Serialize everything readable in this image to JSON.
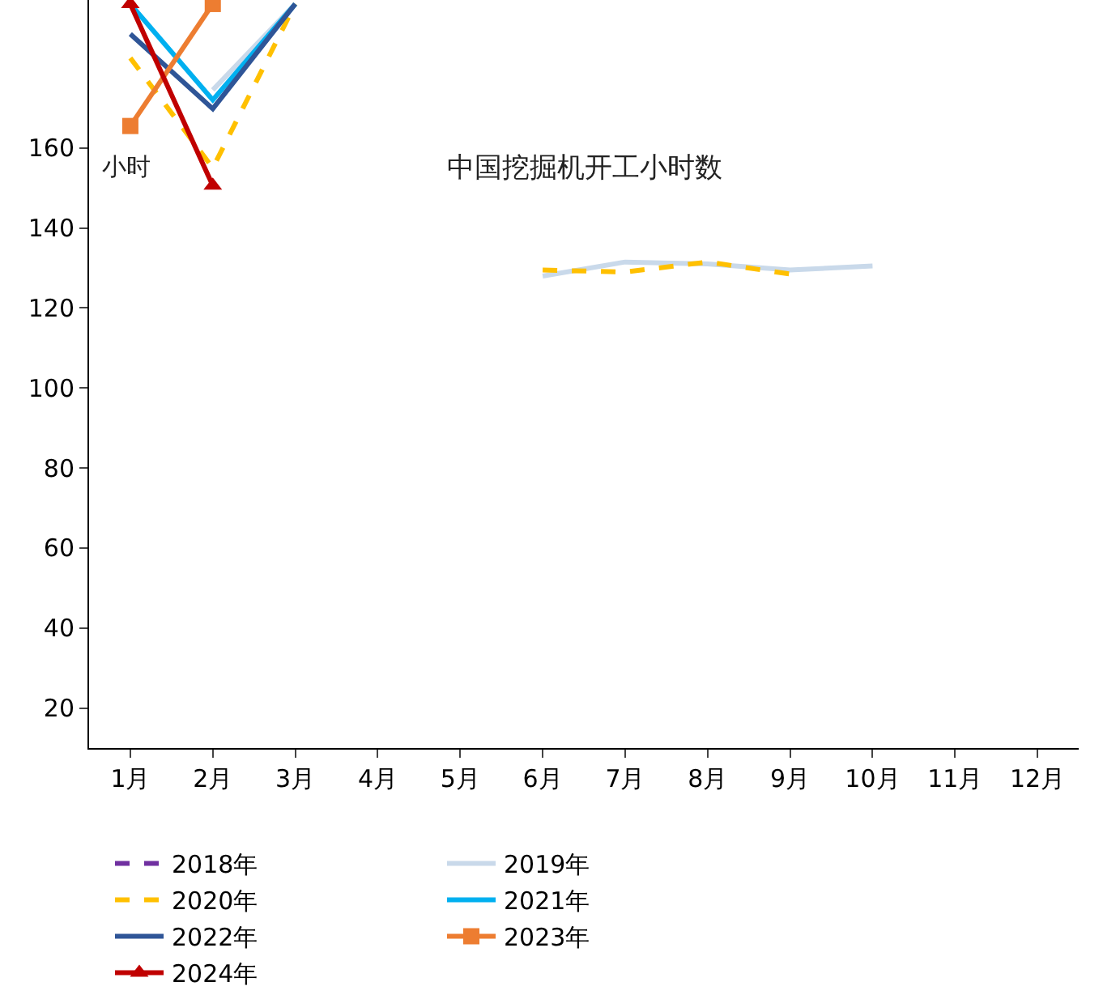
{
  "chart_data": {
    "type": "line",
    "title": "中国挖掘机开工小时数",
    "ylabel": "小时",
    "categories": [
      "1月",
      "2月",
      "3月",
      "4月",
      "5月",
      "6月",
      "7月",
      "8月",
      "9月",
      "10月",
      "11月",
      "12月"
    ],
    "ylim": [
      10,
      197
    ],
    "yticks": [
      20,
      40,
      60,
      80,
      100,
      120,
      140,
      160
    ],
    "grid": false,
    "legend": "bottom",
    "series": [
      {
        "name": "2018年",
        "color": "#7030a0",
        "line_style": "dashed",
        "marker": "none",
        "values": [
          null,
          null,
          null,
          null,
          null,
          null,
          null,
          null,
          null,
          null,
          null,
          null
        ]
      },
      {
        "name": "2019年",
        "color": "#c9d9ea",
        "line_style": "solid",
        "marker": "none",
        "values": [
          null,
          174.5,
          196,
          null,
          null,
          128,
          131.5,
          131,
          129.5,
          130.5,
          null,
          null
        ]
      },
      {
        "name": "2020年",
        "color": "#ffc000",
        "line_style": "dashed",
        "marker": "none",
        "values": [
          182.5,
          155,
          196,
          null,
          null,
          129.5,
          129,
          131.5,
          128.5,
          null,
          null,
          null
        ]
      },
      {
        "name": "2021年",
        "color": "#00b0f0",
        "line_style": "solid",
        "marker": "none",
        "values": [
          196,
          172,
          196,
          null,
          null,
          null,
          null,
          null,
          null,
          null,
          null,
          null
        ]
      },
      {
        "name": "2022年",
        "color": "#2f5597",
        "line_style": "solid",
        "marker": "none",
        "values": [
          188.5,
          169.8,
          196,
          null,
          null,
          null,
          null,
          null,
          null,
          null,
          null,
          null
        ]
      },
      {
        "name": "2023年",
        "color": "#ed7d31",
        "line_style": "solid",
        "marker": "square",
        "values": [
          165.5,
          196,
          null,
          null,
          null,
          null,
          null,
          null,
          null,
          null,
          null,
          null
        ]
      },
      {
        "name": "2024年",
        "color": "#c00000",
        "line_style": "solid",
        "marker": "triangle",
        "values": [
          196,
          150.6,
          null,
          null,
          null,
          null,
          null,
          null,
          null,
          null,
          null,
          null
        ]
      }
    ]
  }
}
